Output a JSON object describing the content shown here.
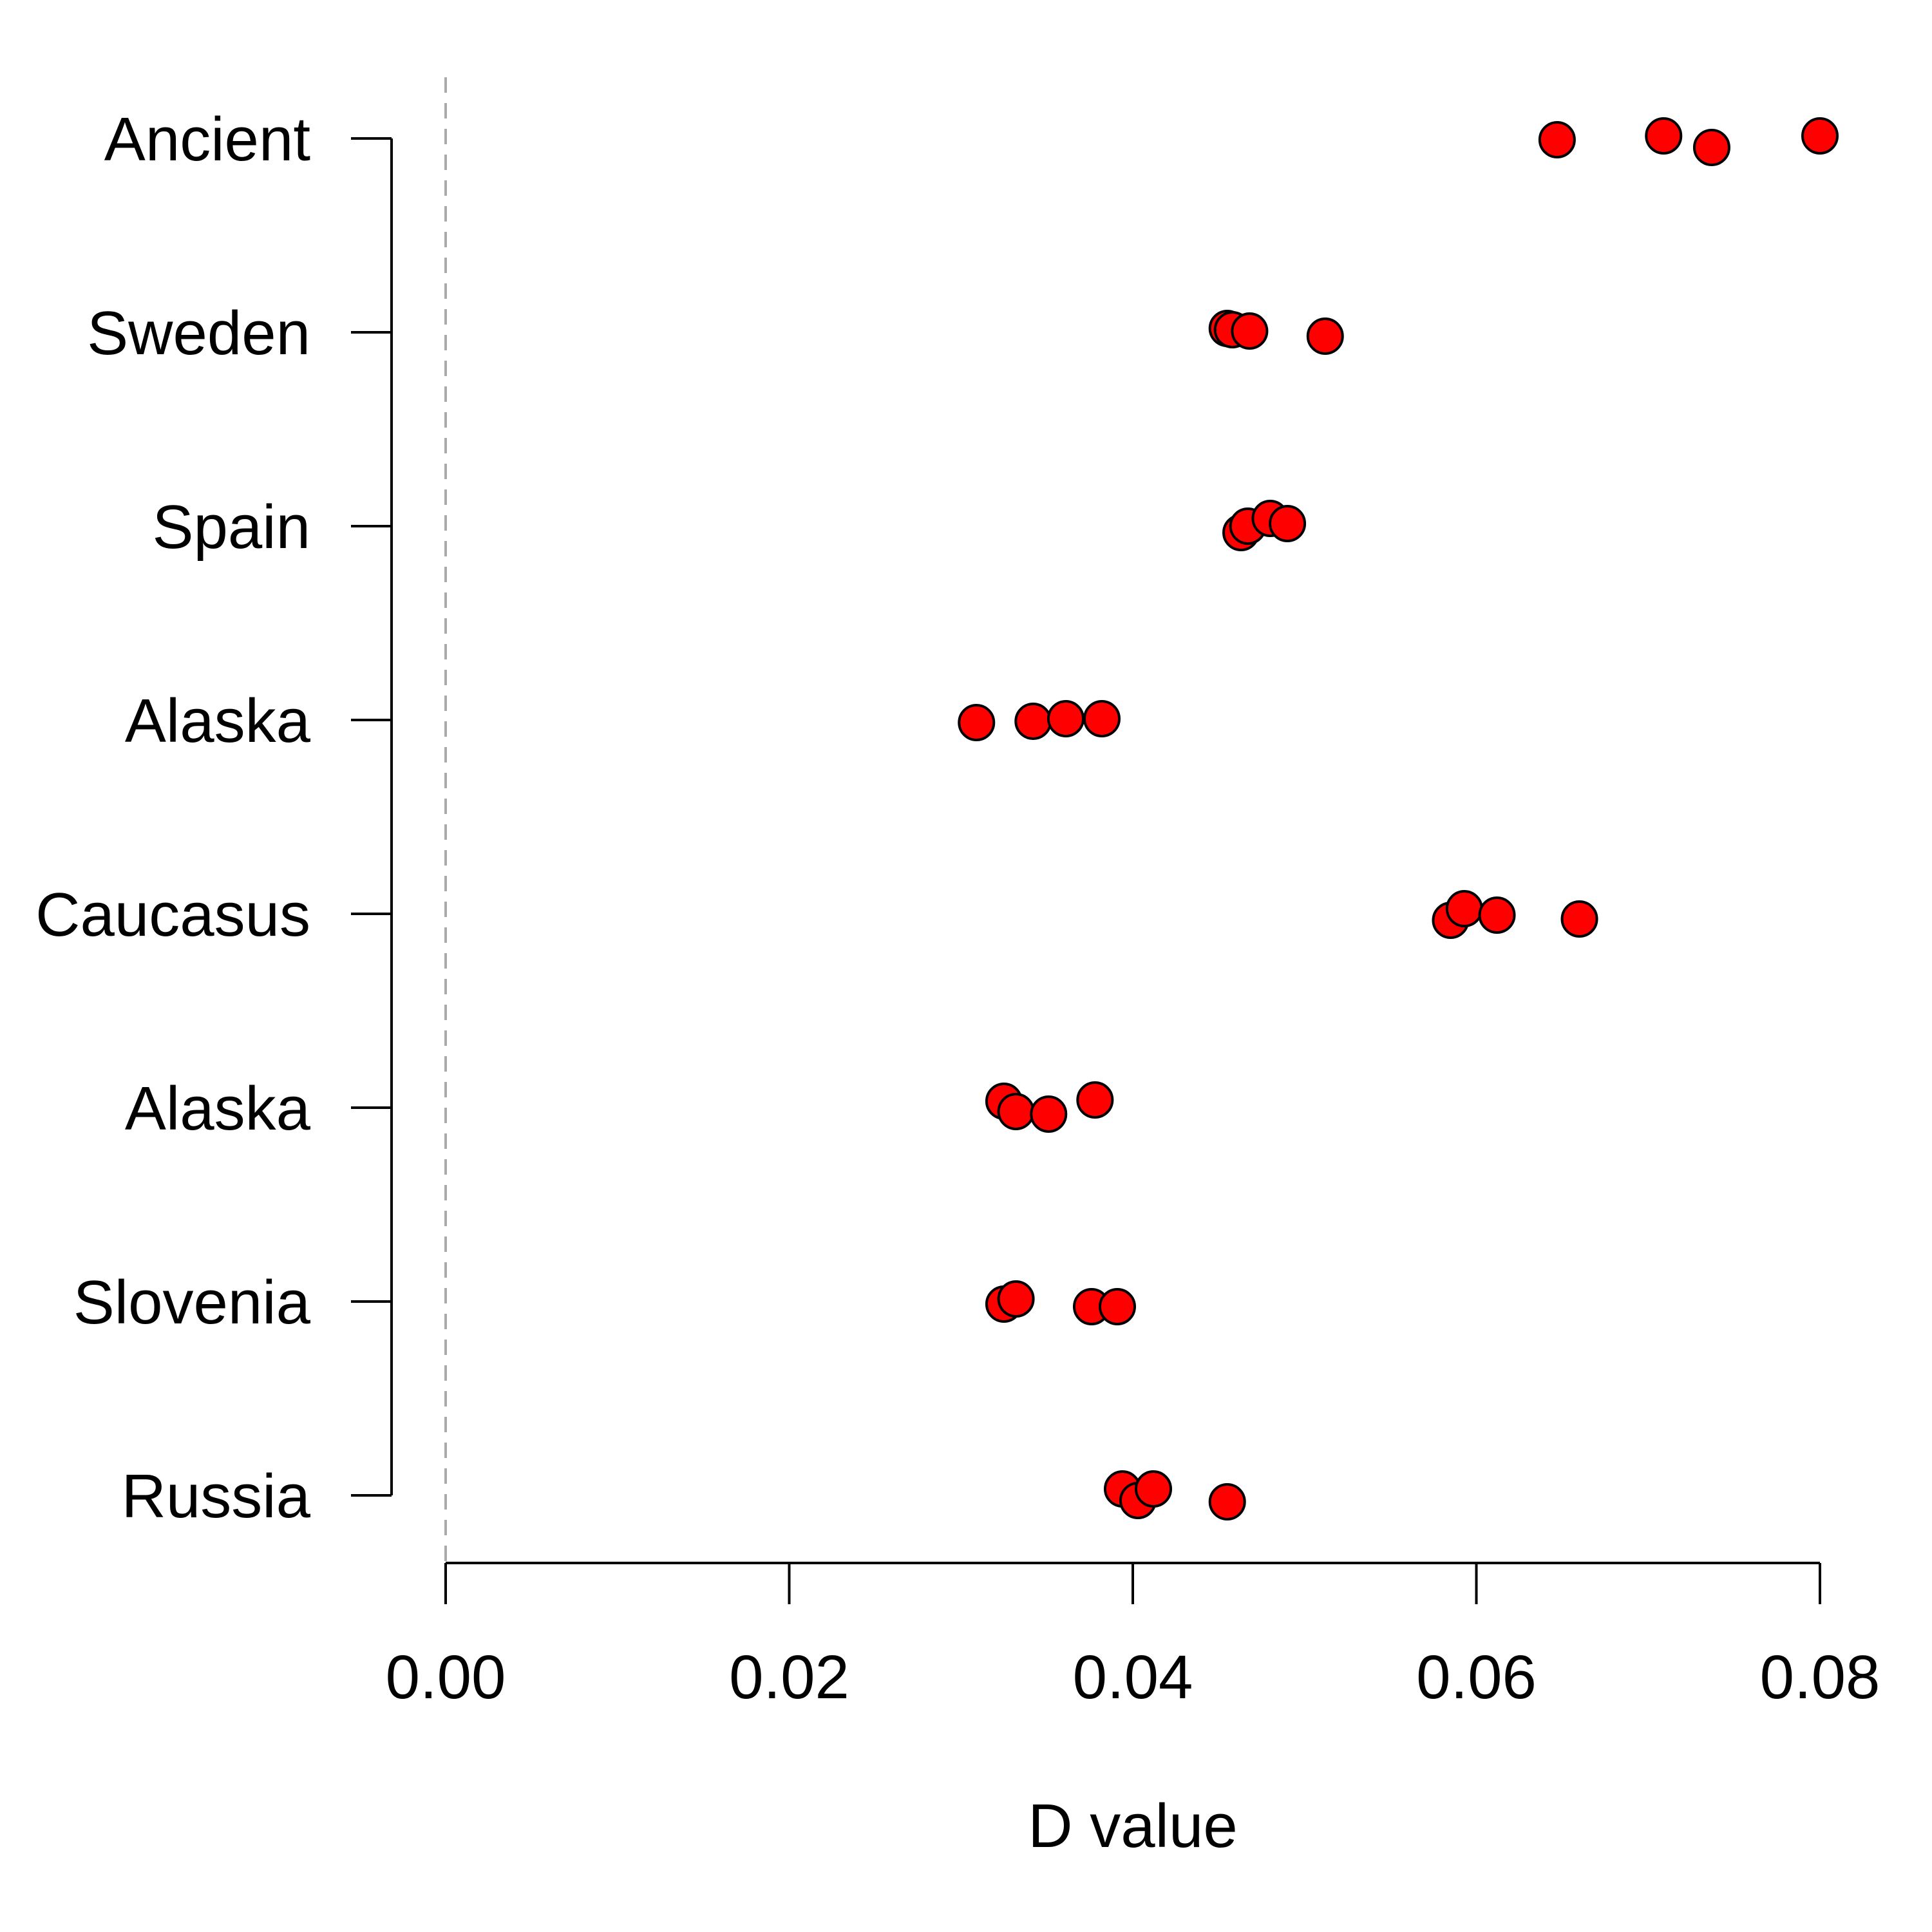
{
  "chart_data": {
    "type": "scatter",
    "orientation": "horizontal-dotplot",
    "title": "",
    "xlabel": "D value",
    "ylabel": "",
    "xlim": [
      0,
      0.08
    ],
    "x_ticks": [
      "0.00",
      "0.02",
      "0.04",
      "0.06",
      "0.08"
    ],
    "reference_line": {
      "x": 0,
      "style": "dashed",
      "color": "#aaaaaa"
    },
    "grid": false,
    "legend": "none",
    "point_color": "#ff0000",
    "point_outline": "#000000",
    "categories": [
      "Ancient",
      "Sweden",
      "Spain",
      "Alaska",
      "Caucasus",
      "Alaska",
      "Slovenia",
      "Russia"
    ],
    "values": [
      [
        0.0647,
        0.0709,
        0.0737,
        0.08
      ],
      [
        0.0455,
        0.0458,
        0.0468,
        0.0512
      ],
      [
        0.0463,
        0.0467,
        0.048,
        0.049
      ],
      [
        0.0309,
        0.0342,
        0.0361,
        0.0382
      ],
      [
        0.0585,
        0.0593,
        0.0612,
        0.066
      ],
      [
        0.0325,
        0.0332,
        0.0351,
        0.0378
      ],
      [
        0.0325,
        0.0332,
        0.0376,
        0.0391
      ],
      [
        0.0394,
        0.0403,
        0.0412,
        0.0455
      ]
    ],
    "jitter": [
      [
        1,
        -2,
        7,
        -2
      ],
      [
        -3,
        -2,
        -1,
        3
      ],
      [
        5,
        0,
        -6,
        -2
      ],
      [
        2,
        1,
        -1,
        -1
      ],
      [
        5,
        -4,
        1,
        4
      ],
      [
        -5,
        3,
        5,
        -6
      ],
      [
        2,
        -2,
        4,
        4
      ],
      [
        -5,
        4,
        -5,
        5
      ]
    ]
  }
}
